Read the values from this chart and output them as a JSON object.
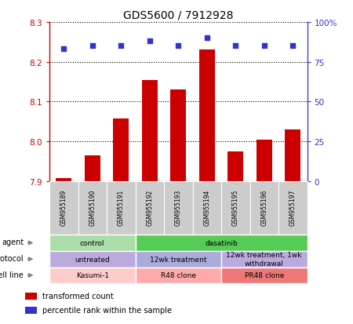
{
  "title": "GDS5600 / 7912928",
  "samples": [
    "GSM955189",
    "GSM955190",
    "GSM955191",
    "GSM955192",
    "GSM955193",
    "GSM955194",
    "GSM955195",
    "GSM955196",
    "GSM955197"
  ],
  "bar_values": [
    7.907,
    7.965,
    8.058,
    8.155,
    8.13,
    8.23,
    7.975,
    8.005,
    8.03
  ],
  "percentile_values": [
    83,
    85,
    85,
    88,
    85,
    90,
    85,
    85,
    85
  ],
  "ylim_left": [
    7.9,
    8.3
  ],
  "ylim_right": [
    0,
    100
  ],
  "yticks_left": [
    7.9,
    8.0,
    8.1,
    8.2,
    8.3
  ],
  "yticks_right": [
    0,
    25,
    50,
    75,
    100
  ],
  "bar_color": "#cc0000",
  "dot_color": "#3333cc",
  "bar_bottom": 7.9,
  "agent_groups": [
    {
      "label": "control",
      "start": 0,
      "end": 3,
      "color": "#aaddaa"
    },
    {
      "label": "dasatinib",
      "start": 3,
      "end": 9,
      "color": "#55cc55"
    }
  ],
  "protocol_groups": [
    {
      "label": "untreated",
      "start": 0,
      "end": 3,
      "color": "#bbaadd"
    },
    {
      "label": "12wk treatment",
      "start": 3,
      "end": 6,
      "color": "#aaaadd"
    },
    {
      "label": "12wk treatment, 1wk\nwithdrawal",
      "start": 6,
      "end": 9,
      "color": "#bbaadd"
    }
  ],
  "cellline_groups": [
    {
      "label": "Kasumi-1",
      "start": 0,
      "end": 3,
      "color": "#ffcccc"
    },
    {
      "label": "R48 clone",
      "start": 3,
      "end": 6,
      "color": "#ffaaaa"
    },
    {
      "label": "PR48 clone",
      "start": 6,
      "end": 9,
      "color": "#ee7777"
    }
  ],
  "row_labels": [
    "agent",
    "protocol",
    "cell line"
  ],
  "legend_items": [
    {
      "color": "#cc0000",
      "label": "transformed count"
    },
    {
      "color": "#3333cc",
      "label": "percentile rank within the sample"
    }
  ],
  "xtick_bg_color": "#cccccc",
  "spine_color": "#000000"
}
